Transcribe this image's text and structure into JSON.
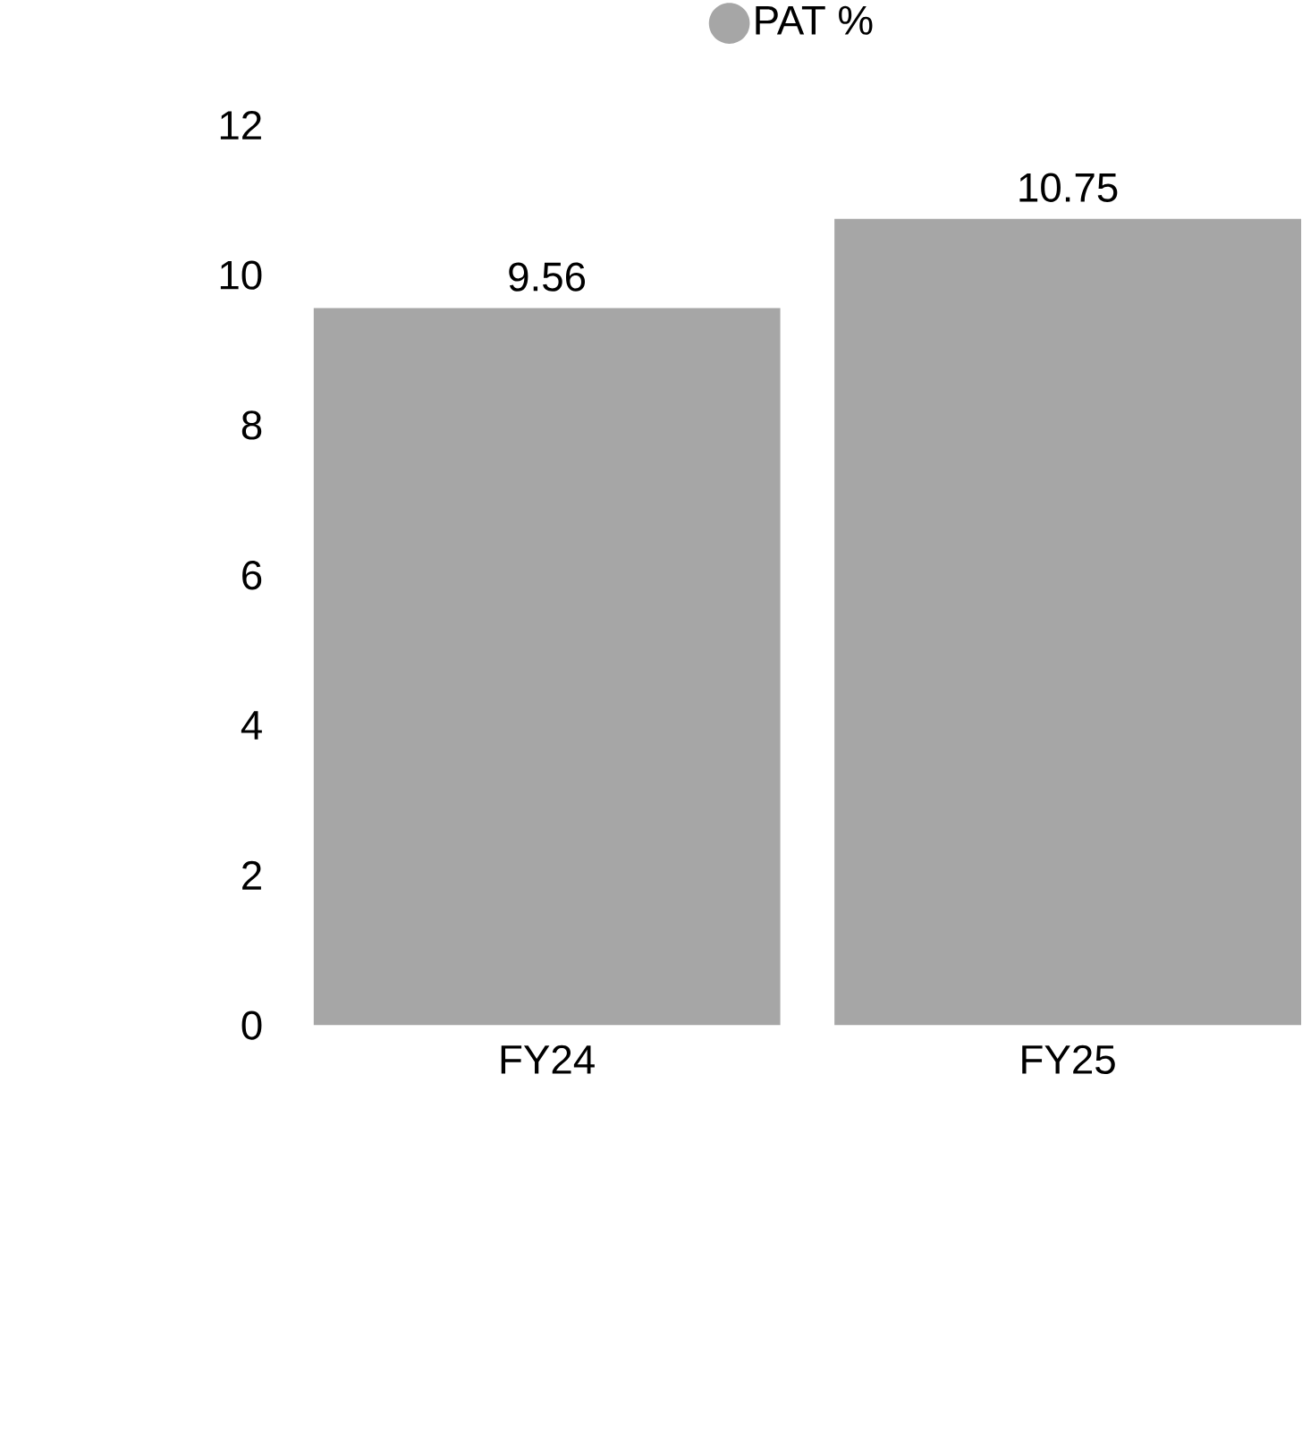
{
  "chart_data": {
    "type": "bar",
    "categories": [
      "FY24",
      "FY25"
    ],
    "series": [
      {
        "name": "PAT %",
        "color": "#a6a6a6",
        "values": [
          9.56,
          10.75
        ]
      }
    ],
    "ylim": [
      0,
      12
    ],
    "yticks": [
      0,
      2,
      4,
      6,
      8,
      10,
      12
    ],
    "data_labels": true,
    "legend": "top",
    "grid": false
  }
}
